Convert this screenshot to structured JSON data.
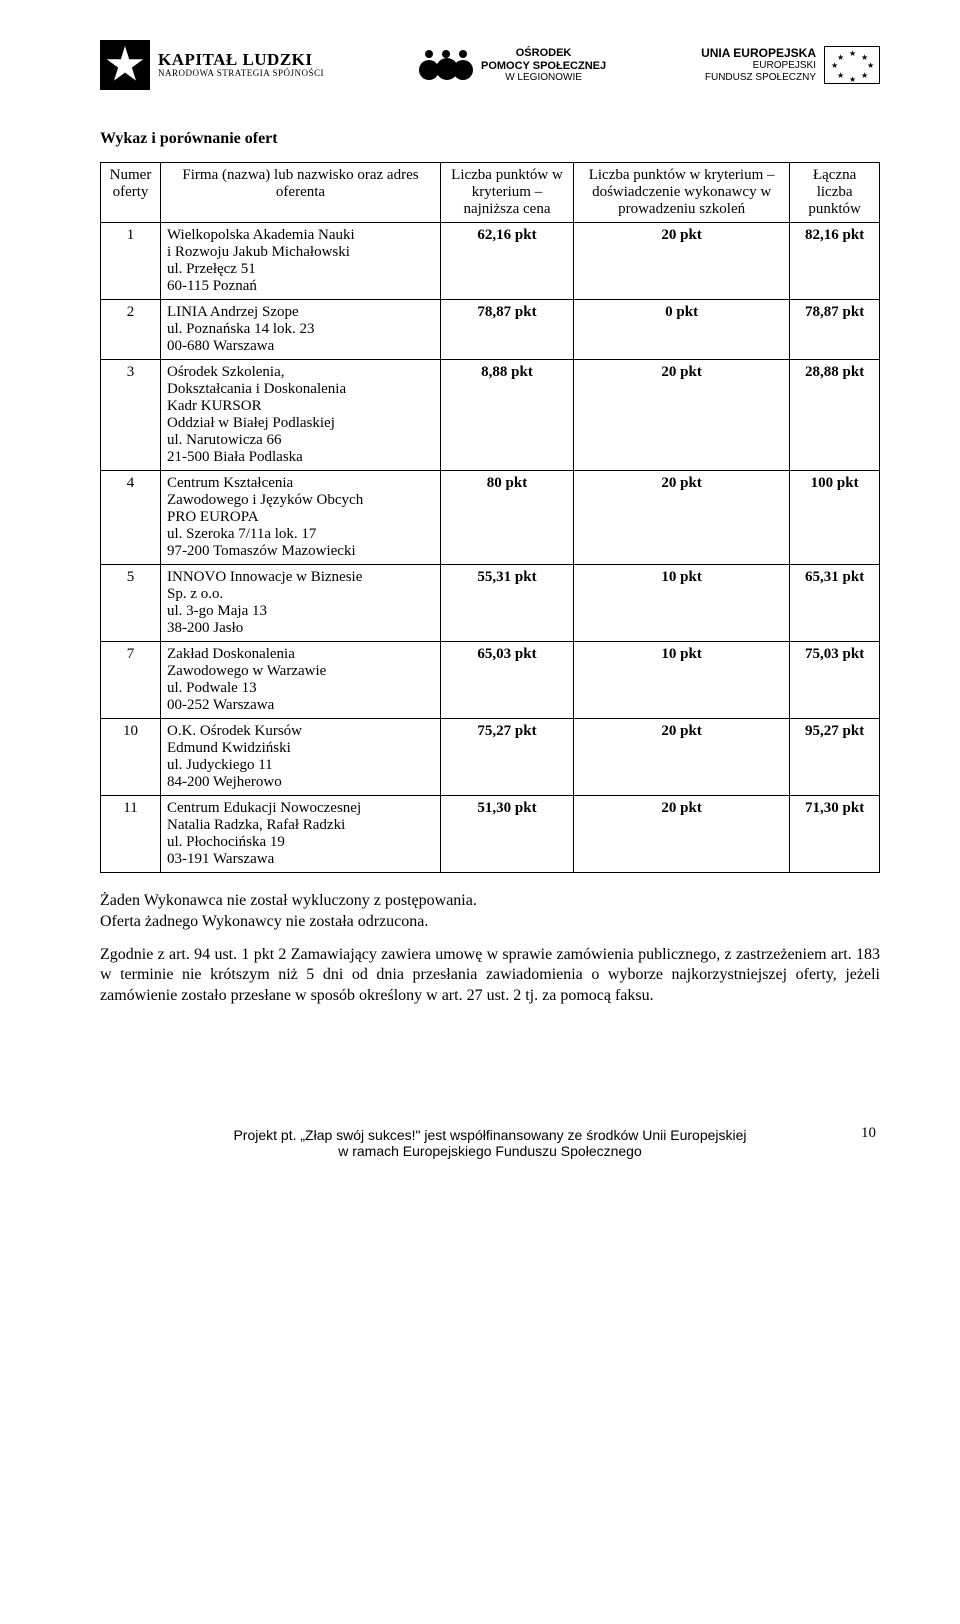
{
  "logos": {
    "kapital": {
      "line1": "KAPITAŁ LUDZKI",
      "line2": "NARODOWA STRATEGIA SPÓJNOŚCI"
    },
    "ops": {
      "line1": "OŚRODEK",
      "line2": "POMOCY SPOŁECZNEJ",
      "line3": "W LEGIONOWIE"
    },
    "eu": {
      "line1": "UNIA EUROPEJSKA",
      "line2": "EUROPEJSKI",
      "line3": "FUNDUSZ SPOŁECZNY"
    }
  },
  "title": "Wykaz i porównanie ofert",
  "table": {
    "headers": {
      "num": "Numer oferty",
      "firm": "Firma (nazwa) lub nazwisko oraz adres oferenta",
      "p1": "Liczba punktów w kryterium – najniższa cena",
      "p2": "Liczba punktów w kryterium – doświadczenie wykonawcy w prowadzeniu szkoleń",
      "p3": "Łączna liczba punktów"
    },
    "rows": [
      {
        "num": "1",
        "firm": "Wielkopolska Akademia Nauki\ni Rozwoju Jakub Michałowski\nul. Przełęcz 51\n60-115 Poznań",
        "p1": "62,16 pkt",
        "p2": "20 pkt",
        "p3": "82,16 pkt"
      },
      {
        "num": "2",
        "firm": "LINIA Andrzej Szope\nul. Poznańska 14 lok. 23\n00-680 Warszawa",
        "p1": "78,87 pkt",
        "p2": "0 pkt",
        "p3": "78,87 pkt"
      },
      {
        "num": "3",
        "firm": "Ośrodek Szkolenia,\nDokształcania i Doskonalenia\nKadr KURSOR\nOddział w Białej Podlaskiej\nul. Narutowicza 66\n21-500 Biała Podlaska",
        "p1": "8,88 pkt",
        "p2": "20 pkt",
        "p3": "28,88 pkt"
      },
      {
        "num": "4",
        "firm": "Centrum Kształcenia\nZawodowego i Języków Obcych\nPRO EUROPA\nul. Szeroka 7/11a lok. 17\n97-200 Tomaszów Mazowiecki",
        "p1": "80 pkt",
        "p2": "20 pkt",
        "p3": "100 pkt"
      },
      {
        "num": "5",
        "firm": "INNOVO Innowacje w Biznesie\nSp. z o.o.\nul. 3-go Maja 13\n38-200 Jasło",
        "p1": "55,31 pkt",
        "p2": "10 pkt",
        "p3": "65,31 pkt"
      },
      {
        "num": "7",
        "firm": "Zakład Doskonalenia\nZawodowego w Warzawie\nul. Podwale 13\n00-252 Warszawa",
        "p1": "65,03 pkt",
        "p2": "10 pkt",
        "p3": "75,03 pkt"
      },
      {
        "num": "10",
        "firm": "O.K. Ośrodek Kursów\nEdmund Kwidziński\nul. Judyckiego 11\n84-200 Wejherowo",
        "p1": "75,27 pkt",
        "p2": "20 pkt",
        "p3": "95,27 pkt"
      },
      {
        "num": "11",
        "firm": "Centrum Edukacji Nowoczesnej\nNatalia Radzka, Rafał Radzki\nul. Płochocińska 19\n03-191 Warszawa",
        "p1": "51,30 pkt",
        "p2": "20 pkt",
        "p3": "71,30 pkt"
      }
    ]
  },
  "after": {
    "p1": "Żaden Wykonawca nie został wykluczony z postępowania.",
    "p2": "Oferta żadnego Wykonawcy nie została odrzucona.",
    "p3": "Zgodnie z art. 94 ust. 1 pkt 2 Zamawiający zawiera umowę w sprawie zamówienia publicznego, z zastrzeżeniem art. 183 w terminie nie krótszym niż 5 dni od dnia przesłania zawiadomienia o wyborze najkorzystniejszej oferty, jeżeli zamówienie zostało przesłane w sposób określony w art. 27 ust. 2 tj. za pomocą faksu."
  },
  "footer": {
    "line1": "Projekt pt. „Złap swój sukces!\" jest współfinansowany ze środków Unii Europejskiej",
    "line2": "w ramach Europejskiego Funduszu Społecznego",
    "pagenum": "10"
  }
}
